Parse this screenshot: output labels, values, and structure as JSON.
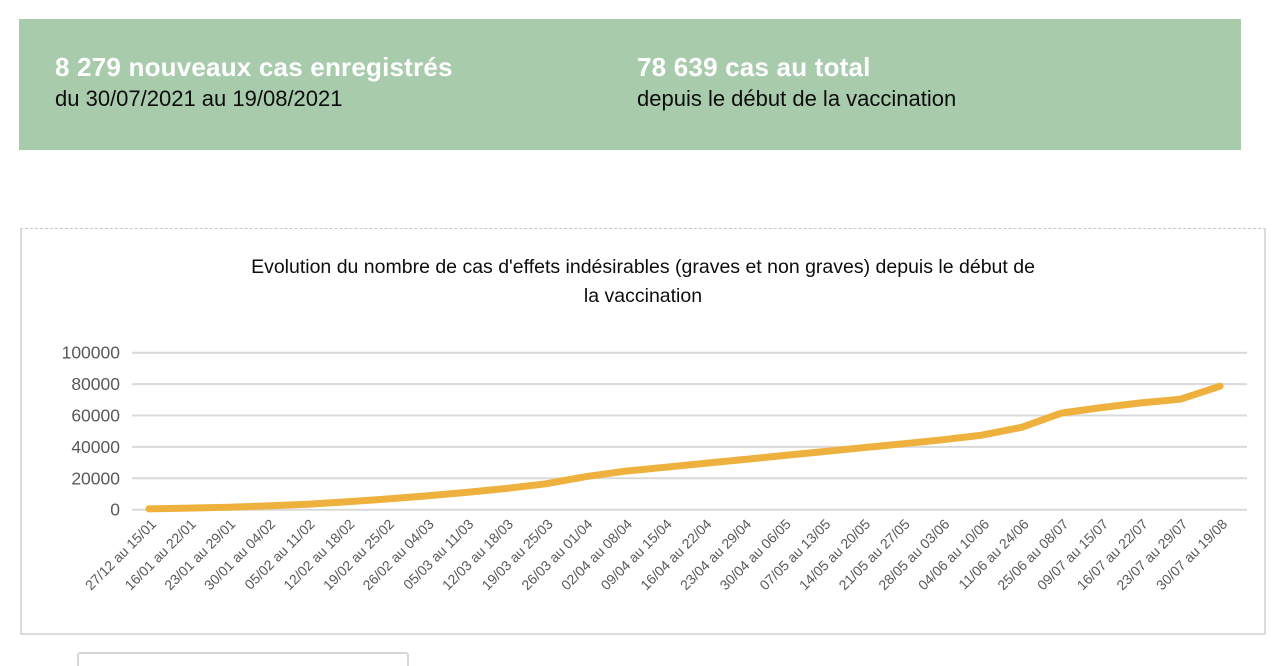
{
  "banner": {
    "bg_color": "#a8cbac",
    "left": {
      "headline": "8 279 nouveaux cas enregistrés",
      "subtext": "du 30/07/2021 au 19/08/2021"
    },
    "right": {
      "headline": "78 639 cas au total",
      "subtext": "depuis le début de la vaccination"
    }
  },
  "chart_data": {
    "type": "line",
    "title": "Evolution du nombre de cas d'effets indésirables (graves et non graves) depuis le début de la vaccination",
    "title_lines": [
      "Evolution du nombre de cas d'effets indésirables (graves et non graves) depuis le début de",
      "la vaccination"
    ],
    "categories": [
      "27/12 au 15/01",
      "16/01 au 22/01",
      "23/01 au 29/01",
      "30/01 au 04/02",
      "05/02 au 11/02",
      "12/02 au 18/02",
      "19/02 au 25/02",
      "26/02 au 04/03",
      "05/03 au 11/03",
      "12/03 au 18/03",
      "19/03 au 25/03",
      "26/03 au 01/04",
      "02/04 au 08/04",
      "09/04 au 15/04",
      "16/04 au 22/04",
      "23/04 au 29/04",
      "30/04 au 06/05",
      "07/05 au 13/05",
      "14/05 au 20/05",
      "21/05 au 27/05",
      "28/05 au 03/06",
      "04/06 au 10/06",
      "11/06 au 24/06",
      "25/06 au 08/07",
      "09/07 au 15/07",
      "16/07 au 22/07",
      "23/07 au 29/07",
      "30/07 au 19/08"
    ],
    "values": [
      500,
      1000,
      1600,
      2400,
      3500,
      5000,
      6800,
      8800,
      11000,
      13500,
      16500,
      21000,
      24500,
      27000,
      29500,
      32000,
      34500,
      37000,
      39500,
      42000,
      44500,
      47500,
      52500,
      61500,
      65000,
      68000,
      70360,
      78639
    ],
    "xlabel": "",
    "ylabel": "",
    "ylim": [
      0,
      100000
    ],
    "yticks": [
      0,
      20000,
      40000,
      60000,
      80000,
      100000
    ],
    "grid": true,
    "legend_position": "none",
    "line_color": "#efb13d",
    "grid_color": "#d9d9d9",
    "axis_text_color": "#595959"
  }
}
